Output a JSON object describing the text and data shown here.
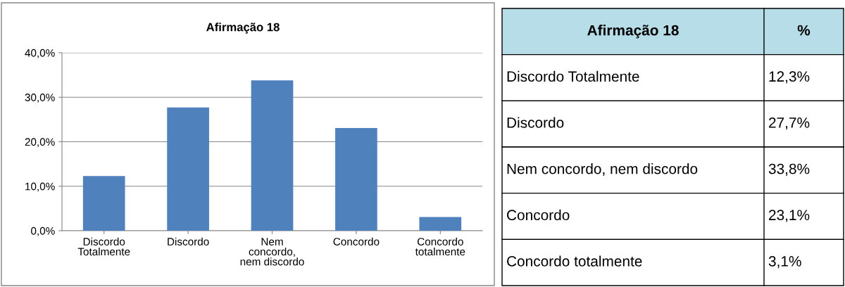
{
  "chart_data": [
    {
      "type": "bar",
      "title": "Afirmação 18",
      "categories": [
        "Discordo\nTotalmente",
        "Discordo",
        "Nem\nconcordo,\nnem discordo",
        "Concordo",
        "Concordo\ntotalmente"
      ],
      "values": [
        12.3,
        27.7,
        33.8,
        23.1,
        3.1
      ],
      "color": "#4f81bd",
      "ylim": [
        0,
        40
      ],
      "yticks": [
        {
          "value": 0,
          "label": "0,0%"
        },
        {
          "value": 10,
          "label": "10,0%"
        },
        {
          "value": 20,
          "label": "20,0%"
        },
        {
          "value": 30,
          "label": "30,0%"
        },
        {
          "value": 40,
          "label": "40,0%"
        }
      ],
      "grid": "y"
    },
    {
      "type": "other",
      "annotations": [
        "Afirmação 18",
        "%",
        "Discordo Totalmente",
        "12,3%",
        "Discordo",
        "27,7%",
        "Nem concordo, nem discordo",
        "33,8%",
        "Concordo",
        "23,1%",
        "Concordo totalmente",
        "3,1%"
      ]
    }
  ]
}
